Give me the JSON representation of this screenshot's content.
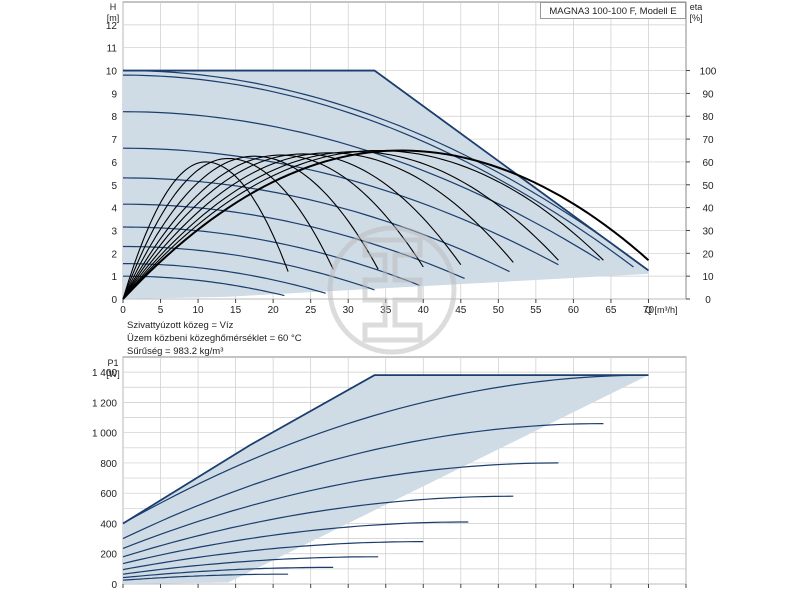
{
  "title": "MAGNA3 100-100 F, Modell E",
  "conditions": [
    "Szivattyúzott közeg = Víz",
    "Üzem közbeni közeghőmérséklet = 60 °C",
    "Sűrűség = 983.2 kg/m³"
  ],
  "colors": {
    "envelope_fill": "#cfdbe5",
    "curve": "#1b3e6e",
    "eta": "#000000",
    "grid": "#cccccc"
  },
  "chart_data": [
    {
      "type": "line",
      "ylabel_top": "H",
      "yunit": "[m]",
      "xlabel": "Q [m³/h]",
      "y2label_top": "eta",
      "y2unit": "[%]",
      "xlim": [
        0,
        75
      ],
      "ylim": [
        0,
        13
      ],
      "y2lim": [
        0,
        130
      ],
      "xticks": [
        "0",
        "5",
        "10",
        "15",
        "20",
        "25",
        "30",
        "35",
        "40",
        "45",
        "50",
        "55",
        "60",
        "65",
        "70"
      ],
      "yticks": [
        "0",
        "1",
        "2",
        "3",
        "4",
        "5",
        "6",
        "7",
        "8",
        "9",
        "10",
        "11",
        "12"
      ],
      "y2ticks": [
        "0",
        "10",
        "20",
        "30",
        "40",
        "50",
        "60",
        "70",
        "80",
        "90",
        "100"
      ],
      "grid": true,
      "envelope": [
        [
          0,
          10
        ],
        [
          33.5,
          10
        ],
        [
          70,
          1.25
        ],
        [
          70,
          1.1
        ],
        [
          14,
          0.1
        ],
        [
          0,
          0
        ]
      ],
      "head_curves": [
        {
          "h0": 10,
          "qend": 70,
          "hend": 1.25
        },
        {
          "h0": 9.8,
          "qend": 68,
          "hend": 1.4
        },
        {
          "h0": 8.2,
          "qend": 63.5,
          "hend": 1.7
        },
        {
          "h0": 6.6,
          "qend": 58,
          "hend": 1.5
        },
        {
          "h0": 5.3,
          "qend": 51.5,
          "hend": 1.2
        },
        {
          "h0": 4.15,
          "qend": 45.5,
          "hend": 0.9
        },
        {
          "h0": 3.15,
          "qend": 39.5,
          "hend": 0.6
        },
        {
          "h0": 2.3,
          "qend": 33.5,
          "hend": 0.4
        },
        {
          "h0": 1.55,
          "qend": 27,
          "hend": 0.25
        },
        {
          "h0": 1.0,
          "qend": 21.5,
          "hend": 0.15
        }
      ],
      "eta_curves": [
        {
          "qmax": 37,
          "etamax": 65,
          "qend": 70,
          "etaend": 17
        },
        {
          "qmax": 34,
          "etamax": 65,
          "qend": 64,
          "etaend": 17
        },
        {
          "qmax": 31,
          "etamax": 64.5,
          "qend": 58,
          "etaend": 17
        },
        {
          "qmax": 27.5,
          "etamax": 64,
          "qend": 52,
          "etaend": 16
        },
        {
          "qmax": 24,
          "etamax": 63.5,
          "qend": 45,
          "etaend": 15
        },
        {
          "qmax": 21,
          "etamax": 63,
          "qend": 40,
          "etaend": 14
        },
        {
          "qmax": 17.5,
          "etamax": 62.5,
          "qend": 34,
          "etaend": 13
        },
        {
          "qmax": 14,
          "etamax": 61.5,
          "qend": 28,
          "etaend": 13
        },
        {
          "qmax": 11,
          "etamax": 60,
          "qend": 22,
          "etaend": 12
        }
      ]
    },
    {
      "type": "line",
      "ylabel_top": "P1",
      "yunit": "[W]",
      "xlim": [
        0,
        75
      ],
      "ylim": [
        0,
        1500
      ],
      "xticks": [],
      "yticks": [
        "0",
        "200",
        "400",
        "600",
        "800",
        "1 000",
        "1 200",
        "1 400"
      ],
      "grid": true,
      "envelope": [
        [
          0,
          400
        ],
        [
          17,
          920
        ],
        [
          33.5,
          1380
        ],
        [
          70,
          1380
        ],
        [
          14,
          10
        ],
        [
          0,
          0
        ]
      ],
      "power_curves": [
        {
          "p0": 400,
          "qend": 70,
          "pend": 1380
        },
        {
          "p0": 300,
          "qend": 64,
          "pend": 1060
        },
        {
          "p0": 235,
          "qend": 58,
          "pend": 800
        },
        {
          "p0": 180,
          "qend": 52,
          "pend": 580
        },
        {
          "p0": 135,
          "qend": 46,
          "pend": 410
        },
        {
          "p0": 95,
          "qend": 40,
          "pend": 280
        },
        {
          "p0": 65,
          "qend": 34,
          "pend": 180
        },
        {
          "p0": 42,
          "qend": 28,
          "pend": 110
        },
        {
          "p0": 25,
          "qend": 22,
          "pend": 65
        }
      ]
    }
  ]
}
